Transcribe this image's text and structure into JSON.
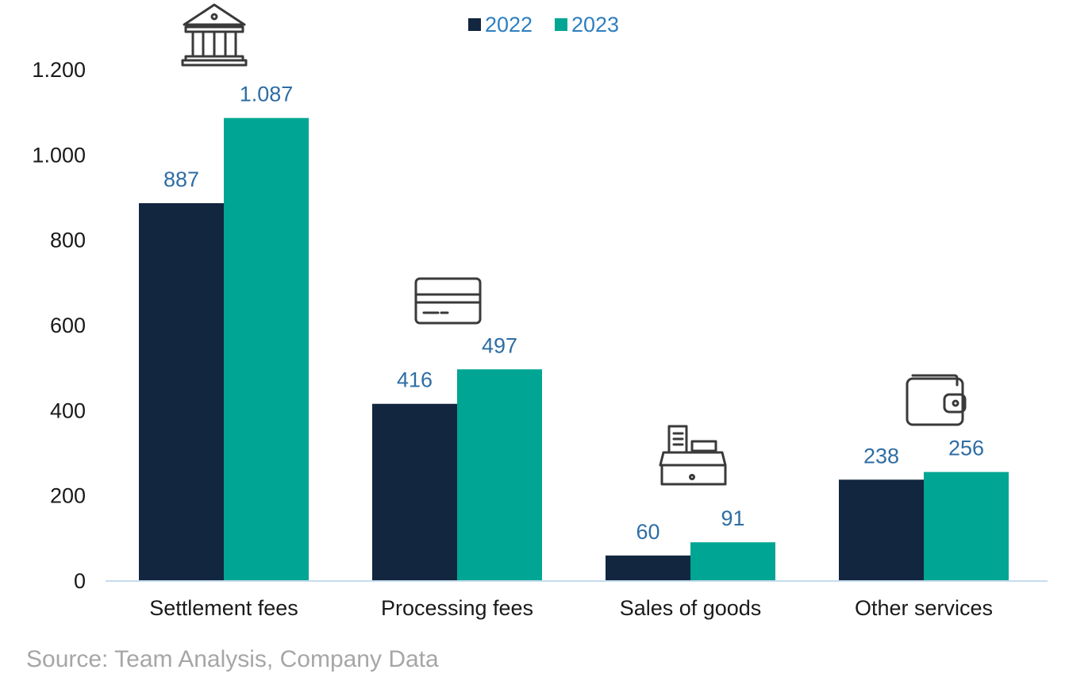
{
  "chart_data": {
    "type": "bar",
    "title": "",
    "xlabel": "",
    "ylabel": "",
    "categories": [
      "Settlement fees",
      "Processing fees",
      "Sales of goods",
      "Other services"
    ],
    "category_icons": [
      "bank-icon",
      "credit-card-icon",
      "cash-register-icon",
      "wallet-icon"
    ],
    "series": [
      {
        "name": "2022",
        "color": "#12263f",
        "values": [
          887,
          416,
          60,
          238
        ],
        "labels": [
          "887",
          "416",
          "60",
          "238"
        ]
      },
      {
        "name": "2023",
        "color": "#00a693",
        "values": [
          1087,
          497,
          91,
          256
        ],
        "labels": [
          "1.087",
          "497",
          "91",
          "256"
        ]
      }
    ],
    "ylim": [
      0,
      1200
    ],
    "yticks": [
      0,
      200,
      400,
      600,
      800,
      1000,
      1200
    ],
    "ytick_labels": [
      "0",
      "200",
      "400",
      "600",
      "800",
      "1.000",
      "1.200"
    ],
    "grid": false,
    "legend_position": "top-center"
  },
  "source": "Source: Team Analysis,  Company Data"
}
